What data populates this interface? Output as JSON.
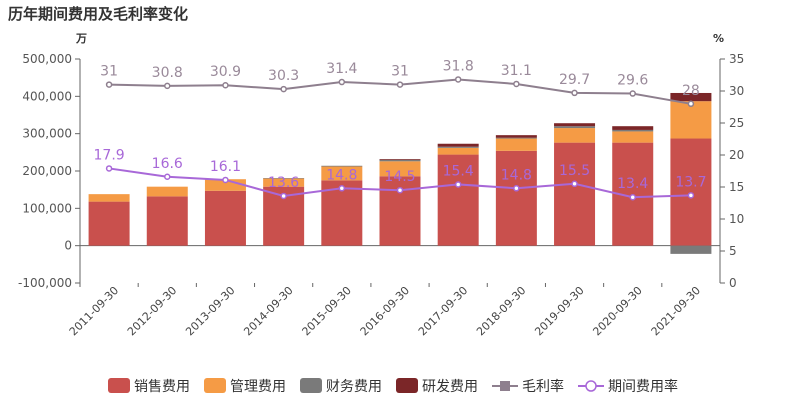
{
  "title": "历年期间费用及毛利率变化",
  "chart_data": {
    "type": "bar",
    "stacked": true,
    "title": "历年期间费用及毛利率变化",
    "y_left_unit": "万",
    "y_right_unit": "%",
    "ylim_left": [
      -100000,
      500000
    ],
    "ylim_right": [
      0,
      35
    ],
    "y_left_ticks": [
      "500,000",
      "400,000",
      "300,000",
      "200,000",
      "100,000",
      "0",
      "-100,000"
    ],
    "y_right_ticks": [
      "35",
      "30",
      "25",
      "20",
      "15",
      "10",
      "5",
      "0"
    ],
    "categories": [
      "2011-09-30",
      "2012-09-30",
      "2013-09-30",
      "2014-09-30",
      "2015-09-30",
      "2016-09-30",
      "2017-09-30",
      "2018-09-30",
      "2019-09-30",
      "2020-09-30",
      "2021-09-30"
    ],
    "series": [
      {
        "name": "销售费用",
        "type": "bar",
        "axis": "left",
        "color": "#c9504d",
        "values": [
          118000,
          132000,
          147000,
          158000,
          175000,
          186000,
          244000,
          254000,
          276000,
          276000,
          287000
        ]
      },
      {
        "name": "管理费用",
        "type": "bar",
        "axis": "left",
        "color": "#f59b45",
        "values": [
          20000,
          26000,
          31000,
          22000,
          37000,
          40000,
          18000,
          33000,
          39000,
          30000,
          100000
        ]
      },
      {
        "name": "财务费用",
        "type": "bar",
        "axis": "left",
        "color": "#7a7a7a",
        "values": [
          0,
          0,
          0,
          1000,
          2000,
          4000,
          3000,
          2000,
          5000,
          4000,
          -22000
        ]
      },
      {
        "name": "研发费用",
        "type": "bar",
        "axis": "left",
        "color": "#7b2628",
        "values": [
          0,
          0,
          0,
          0,
          0,
          2000,
          8000,
          7000,
          8000,
          10000,
          22000
        ]
      },
      {
        "name": "毛利率",
        "type": "line",
        "axis": "right",
        "color": "#8e7f8e",
        "values": [
          31,
          30.8,
          30.9,
          30.3,
          31.4,
          31,
          31.8,
          31.1,
          29.7,
          29.6,
          28
        ]
      },
      {
        "name": "期间费用率",
        "type": "line",
        "axis": "right",
        "color": "#a868d8",
        "values": [
          17.9,
          16.6,
          16.1,
          13.6,
          14.8,
          14.5,
          15.4,
          14.8,
          15.5,
          13.4,
          13.7
        ]
      }
    ],
    "legend_position": "bottom",
    "grid": false
  }
}
